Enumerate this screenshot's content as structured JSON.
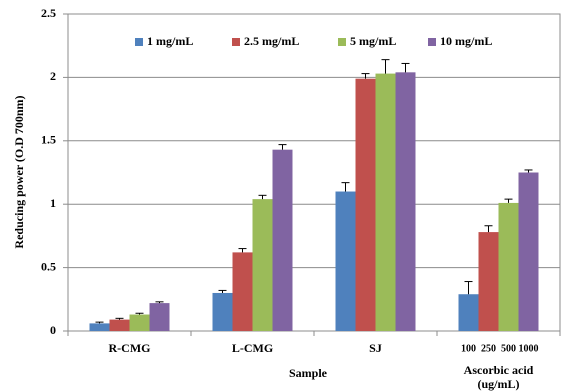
{
  "chart_data": {
    "type": "bar",
    "y_label": "Reducing power (O.D 700nm)",
    "x_label": "Sample",
    "categories": [
      "R-CMG",
      "L-CMG",
      "SJ",
      "Ascorbic acid\n(ug/mL)"
    ],
    "group_sublabels": [
      "100",
      "250",
      "500",
      "1000"
    ],
    "series": [
      {
        "name": "1 mg/mL",
        "color": "#4f81bd",
        "values": [
          0.06,
          0.3,
          1.1,
          0.29
        ],
        "errors": [
          0.01,
          0.02,
          0.07,
          0.1
        ]
      },
      {
        "name": "2.5 mg/mL",
        "color": "#c0504d",
        "values": [
          0.09,
          0.62,
          1.99,
          0.78
        ],
        "errors": [
          0.01,
          0.03,
          0.04,
          0.05
        ]
      },
      {
        "name": "5 mg/mL",
        "color": "#9bbb59",
        "values": [
          0.13,
          1.04,
          2.03,
          1.01
        ],
        "errors": [
          0.01,
          0.03,
          0.11,
          0.03
        ]
      },
      {
        "name": "10 mg/mL",
        "color": "#8064a2",
        "values": [
          0.22,
          1.43,
          2.04,
          1.25
        ],
        "errors": [
          0.01,
          0.04,
          0.07,
          0.02
        ]
      }
    ],
    "ylim": [
      0,
      2.5
    ],
    "yticks": [
      0,
      0.5,
      1,
      1.5,
      2,
      2.5
    ],
    "grid": true,
    "legend": "top"
  }
}
